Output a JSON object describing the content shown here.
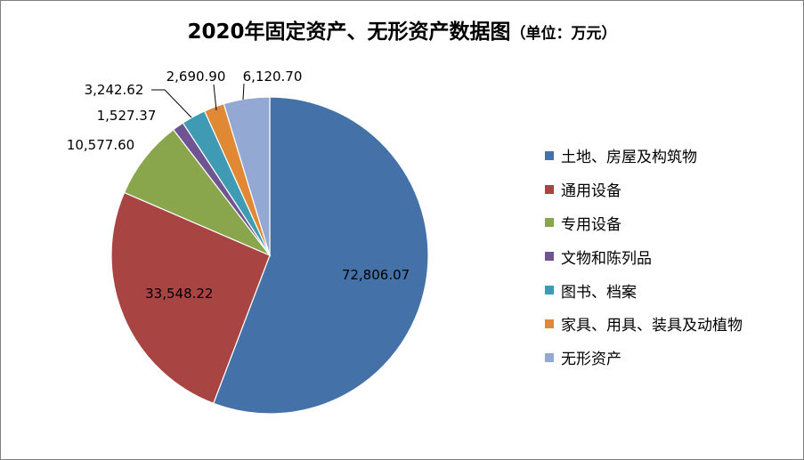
{
  "title": {
    "main": "2020年固定资产、无形资产数据图",
    "unit": "（单位：万元）"
  },
  "colors": {
    "blue": "#4472a8",
    "red": "#a84442",
    "green": "#8aa64c",
    "purple": "#6f5492",
    "teal": "#3f9bb3",
    "orange": "#e08833",
    "lavender": "#93a9d4"
  },
  "chart_data": {
    "type": "pie",
    "title": "2020年固定资产、无形资产数据图（单位：万元）",
    "slices": [
      {
        "name": "土地、房屋及构筑物",
        "value": 72806.07,
        "label": "72,806.07",
        "color": "#4472a8"
      },
      {
        "name": "通用设备",
        "value": 33548.22,
        "label": "33,548.22",
        "color": "#a84442"
      },
      {
        "name": "专用设备",
        "value": 10577.6,
        "label": "10,577.60",
        "color": "#8aa64c"
      },
      {
        "name": "文物和陈列品",
        "value": 1527.37,
        "label": "1,527.37",
        "color": "#6f5492"
      },
      {
        "name": "图书、档案",
        "value": 3242.62,
        "label": "3,242.62",
        "color": "#3f9bb3"
      },
      {
        "name": "家具、用具、装具及动植物",
        "value": 2690.9,
        "label": "2,690.90",
        "color": "#e08833"
      },
      {
        "name": "无形资产",
        "value": 6120.7,
        "label": "6,120.70",
        "color": "#93a9d4"
      }
    ],
    "legend_position": "right"
  }
}
